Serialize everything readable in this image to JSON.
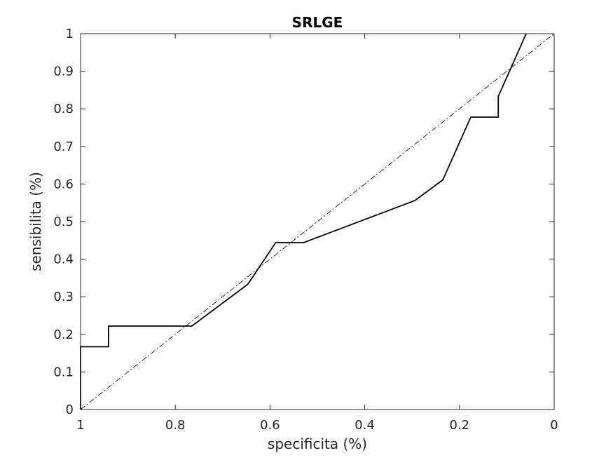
{
  "chart_data": {
    "type": "line",
    "title": "SRLGE",
    "xlabel": "specificita (%)",
    "ylabel": "sensibilita (%)",
    "xlim": [
      1,
      0
    ],
    "ylim": [
      0,
      1
    ],
    "x_reversed": true,
    "grid": false,
    "x_ticks": [
      "1",
      "0.8",
      "0.6",
      "0.4",
      "0.2",
      "0"
    ],
    "x_tick_values": [
      1,
      0.8,
      0.6,
      0.4,
      0.2,
      0
    ],
    "y_ticks": [
      "0",
      "0.1",
      "0.2",
      "0.3",
      "0.4",
      "0.5",
      "0.6",
      "0.7",
      "0.8",
      "0.9",
      "1"
    ],
    "y_tick_values": [
      0,
      0.1,
      0.2,
      0.3,
      0.4,
      0.5,
      0.6,
      0.7,
      0.8,
      0.9,
      1
    ],
    "series": [
      {
        "style": "solid",
        "color": "#000000",
        "x": [
          1,
          1,
          0.941,
          0.941,
          0.765,
          0.647,
          0.588,
          0.529,
          0.294,
          0.235,
          0.176,
          0.118,
          0.118,
          0.059
        ],
        "y": [
          0,
          0.167,
          0.167,
          0.222,
          0.222,
          0.333,
          0.444,
          0.444,
          0.556,
          0.611,
          0.778,
          0.778,
          0.833,
          1
        ]
      },
      {
        "style": "dash-dot",
        "color": "#000000",
        "x": [
          1,
          0
        ],
        "y": [
          0,
          1
        ]
      }
    ]
  }
}
